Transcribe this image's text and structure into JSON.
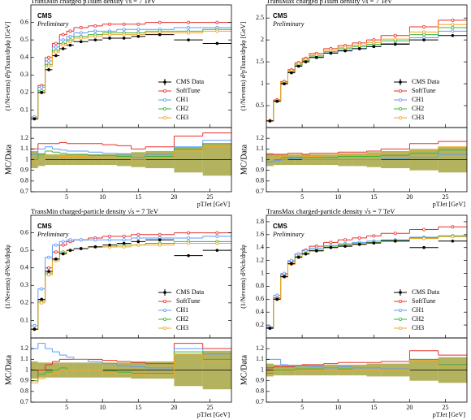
{
  "chart_data": [
    {
      "type": "histogram",
      "title": "TransMin charged pTsum density √s = 7 TeV",
      "ylabel": "(1/Nevents) d²pTsum/dηdφ [GeV]",
      "xlabel": "pTJet [GeV]",
      "annotation": "CMS",
      "annotation2": "Preliminary",
      "legend": "lower right",
      "bins": [
        0,
        1,
        2,
        3,
        4,
        5,
        6,
        8,
        10,
        12,
        14,
        16,
        20,
        24,
        28
      ],
      "xlim": [
        0,
        28
      ],
      "xticks": [
        5,
        10,
        15,
        20,
        25
      ],
      "ylim": [
        0,
        0.7
      ],
      "yticks": [
        0.1,
        0.2,
        0.3,
        0.4,
        0.5,
        0.6
      ],
      "series": [
        {
          "name": "CMS Data",
          "color": "#000000",
          "values": [
            0.05,
            0.2,
            0.33,
            0.41,
            0.45,
            0.47,
            0.49,
            0.5,
            0.51,
            0.51,
            0.52,
            0.53,
            0.5,
            0.48
          ]
        },
        {
          "name": "SoftTune",
          "color": "#e8302a",
          "values": [
            0.06,
            0.24,
            0.4,
            0.48,
            0.53,
            0.55,
            0.57,
            0.58,
            0.59,
            0.59,
            0.59,
            0.6,
            0.6,
            0.6
          ]
        },
        {
          "name": "CH1",
          "color": "#5b9bff",
          "values": [
            0.06,
            0.23,
            0.38,
            0.46,
            0.5,
            0.52,
            0.54,
            0.55,
            0.55,
            0.56,
            0.56,
            0.56,
            0.57,
            0.57
          ]
        },
        {
          "name": "CH2",
          "color": "#3bb33b",
          "values": [
            0.05,
            0.21,
            0.36,
            0.44,
            0.48,
            0.5,
            0.52,
            0.53,
            0.54,
            0.54,
            0.54,
            0.55,
            0.55,
            0.56
          ]
        },
        {
          "name": "CH3",
          "color": "#f5a623",
          "values": [
            0.05,
            0.2,
            0.35,
            0.43,
            0.47,
            0.49,
            0.51,
            0.52,
            0.53,
            0.53,
            0.53,
            0.54,
            0.54,
            0.55
          ]
        }
      ],
      "ratio": {
        "ylabel": "MC/Data",
        "ylim": [
          0.7,
          1.3
        ],
        "yticks": [
          0.7,
          0.8,
          0.9,
          1,
          1.1,
          1.2
        ],
        "band_color": "#9a9a2a",
        "band": [
          0.08,
          0.06,
          0.05,
          0.05,
          0.05,
          0.05,
          0.05,
          0.05,
          0.05,
          0.06,
          0.07,
          0.08,
          0.12,
          0.15
        ],
        "series": [
          {
            "values": [
              1.1,
              1.15,
              1.15,
              1.15,
              1.16,
              1.15,
              1.15,
              1.15,
              1.14,
              1.13,
              1.1,
              1.12,
              1.22,
              1.25
            ]
          },
          {
            "values": [
              1.05,
              1.1,
              1.12,
              1.1,
              1.09,
              1.08,
              1.08,
              1.07,
              1.06,
              1.05,
              1.02,
              1.05,
              1.12,
              1.18
            ]
          },
          {
            "values": [
              1.0,
              1.05,
              1.08,
              1.07,
              1.06,
              1.05,
              1.05,
              1.04,
              1.04,
              1.03,
              1.0,
              1.03,
              1.1,
              1.15
            ]
          },
          {
            "values": [
              0.98,
              1.0,
              1.04,
              1.04,
              1.03,
              1.03,
              1.03,
              1.02,
              1.02,
              1.02,
              0.98,
              1.02,
              1.08,
              1.12
            ]
          }
        ]
      }
    },
    {
      "type": "histogram",
      "title": "TransMax charged pTsum density √s = 7 TeV",
      "ylabel": "(1/Nevents) d²pTsum/dηdφ [GeV]",
      "xlabel": "pTJet [GeV]",
      "annotation": "CMS",
      "annotation2": "Preliminary",
      "legend": "lower right",
      "bins": [
        0,
        1,
        2,
        3,
        4,
        5,
        6,
        8,
        10,
        12,
        14,
        16,
        20,
        24,
        28
      ],
      "xlim": [
        0,
        28
      ],
      "xticks": [
        5,
        10,
        15,
        20,
        25
      ],
      "ylim": [
        0,
        2.8
      ],
      "yticks": [
        0.5,
        1,
        1.5,
        2,
        2.5
      ],
      "series": [
        {
          "name": "CMS Data",
          "color": "#000000",
          "values": [
            0.15,
            0.6,
            1.0,
            1.25,
            1.4,
            1.5,
            1.6,
            1.7,
            1.75,
            1.8,
            1.85,
            1.9,
            2.0,
            2.1
          ]
        },
        {
          "name": "SoftTune",
          "color": "#e8302a",
          "values": [
            0.16,
            0.63,
            1.05,
            1.32,
            1.48,
            1.58,
            1.69,
            1.8,
            1.87,
            1.93,
            2.0,
            2.1,
            2.3,
            2.45
          ]
        },
        {
          "name": "CH1",
          "color": "#5b9bff",
          "values": [
            0.15,
            0.6,
            1.0,
            1.26,
            1.41,
            1.51,
            1.6,
            1.7,
            1.76,
            1.8,
            1.85,
            1.92,
            2.05,
            2.2
          ]
        },
        {
          "name": "CH2",
          "color": "#3bb33b",
          "values": [
            0.15,
            0.6,
            1.02,
            1.28,
            1.43,
            1.53,
            1.63,
            1.73,
            1.8,
            1.85,
            1.9,
            1.98,
            2.12,
            2.28
          ]
        },
        {
          "name": "CH3",
          "color": "#f5a623",
          "values": [
            0.15,
            0.61,
            1.03,
            1.3,
            1.45,
            1.55,
            1.65,
            1.76,
            1.83,
            1.88,
            1.94,
            2.02,
            2.18,
            2.35
          ]
        }
      ],
      "ratio": {
        "ylabel": "MC/Data",
        "ylim": [
          0.7,
          1.3
        ],
        "yticks": [
          0.7,
          0.8,
          0.9,
          1,
          1.1,
          1.2
        ],
        "band_color": "#9a9a2a",
        "band": [
          0.06,
          0.05,
          0.05,
          0.05,
          0.05,
          0.05,
          0.05,
          0.05,
          0.06,
          0.06,
          0.07,
          0.08,
          0.1,
          0.12
        ],
        "series": [
          {
            "values": [
              1.05,
              1.05,
              1.05,
              1.06,
              1.06,
              1.05,
              1.06,
              1.06,
              1.07,
              1.07,
              1.08,
              1.1,
              1.15,
              1.17
            ]
          },
          {
            "values": [
              0.98,
              0.99,
              1.0,
              1.01,
              1.01,
              1.0,
              1.0,
              1.0,
              1.0,
              1.0,
              1.0,
              1.01,
              1.02,
              1.05
            ]
          },
          {
            "values": [
              1.0,
              1.0,
              1.02,
              1.02,
              1.02,
              1.02,
              1.02,
              1.02,
              1.03,
              1.03,
              1.03,
              1.04,
              1.06,
              1.09
            ]
          },
          {
            "values": [
              1.0,
              1.01,
              1.03,
              1.04,
              1.04,
              1.03,
              1.03,
              1.04,
              1.05,
              1.04,
              1.05,
              1.06,
              1.09,
              1.12
            ]
          }
        ]
      }
    },
    {
      "type": "histogram",
      "title": "TransMin charged-particle density √s = 7 TeV",
      "ylabel": "(1/Nevents) d²Nch/dηdφ",
      "xlabel": "pTJet [GeV]",
      "annotation": "CMS",
      "annotation2": "Preliminary",
      "legend": "lower right",
      "bins": [
        0,
        1,
        2,
        3,
        4,
        5,
        6,
        8,
        10,
        12,
        14,
        16,
        20,
        24,
        28
      ],
      "xlim": [
        0,
        28
      ],
      "xticks": [
        5,
        10,
        15,
        20,
        25
      ],
      "ylim": [
        0,
        0.7
      ],
      "yticks": [
        0.1,
        0.2,
        0.3,
        0.4,
        0.5,
        0.6
      ],
      "series": [
        {
          "name": "CMS Data",
          "color": "#000000",
          "values": [
            0.05,
            0.22,
            0.38,
            0.45,
            0.48,
            0.5,
            0.51,
            0.52,
            0.53,
            0.54,
            0.55,
            0.56,
            0.47,
            0.5
          ]
        },
        {
          "name": "SoftTune",
          "color": "#e8302a",
          "values": [
            0.05,
            0.22,
            0.4,
            0.49,
            0.53,
            0.55,
            0.56,
            0.57,
            0.58,
            0.58,
            0.59,
            0.59,
            0.6,
            0.6
          ]
        },
        {
          "name": "CH1",
          "color": "#5b9bff",
          "values": [
            0.07,
            0.28,
            0.46,
            0.53,
            0.55,
            0.56,
            0.56,
            0.56,
            0.56,
            0.56,
            0.57,
            0.57,
            0.57,
            0.58
          ]
        },
        {
          "name": "CH2",
          "color": "#3bb33b",
          "values": [
            0.05,
            0.21,
            0.37,
            0.45,
            0.49,
            0.5,
            0.51,
            0.52,
            0.52,
            0.53,
            0.53,
            0.54,
            0.55,
            0.55
          ]
        },
        {
          "name": "CH3",
          "color": "#f5a623",
          "values": [
            0.05,
            0.2,
            0.36,
            0.44,
            0.48,
            0.5,
            0.51,
            0.52,
            0.52,
            0.52,
            0.53,
            0.53,
            0.54,
            0.54
          ]
        }
      ],
      "ratio": {
        "ylabel": "MC/Data",
        "ylim": [
          0.7,
          1.3
        ],
        "yticks": [
          0.7,
          0.8,
          0.9,
          1,
          1.1,
          1.2
        ],
        "band_color": "#9a9a2a",
        "band": [
          0.08,
          0.07,
          0.07,
          0.07,
          0.07,
          0.07,
          0.07,
          0.07,
          0.07,
          0.07,
          0.08,
          0.08,
          0.15,
          0.18
        ],
        "series": [
          {
            "values": [
              0.9,
              1.0,
              1.05,
              1.08,
              1.1,
              1.1,
              1.1,
              1.1,
              1.09,
              1.08,
              1.07,
              1.06,
              1.25,
              1.2
            ]
          },
          {
            "values": [
              1.2,
              1.25,
              1.2,
              1.17,
              1.14,
              1.12,
              1.1,
              1.08,
              1.06,
              1.04,
              1.03,
              1.02,
              1.2,
              1.15
            ]
          },
          {
            "values": [
              0.9,
              0.96,
              0.98,
              1.0,
              1.02,
              1.0,
              1.0,
              1.0,
              0.99,
              0.98,
              0.97,
              0.97,
              1.17,
              1.1
            ]
          },
          {
            "values": [
              0.88,
              0.92,
              0.95,
              0.98,
              1.0,
              1.0,
              1.0,
              1.0,
              0.98,
              0.97,
              0.96,
              0.95,
              1.15,
              1.08
            ]
          }
        ]
      }
    },
    {
      "type": "histogram",
      "title": "TransMax charged-particle density √s = 7 TeV",
      "ylabel": "(1/Nevents) d²Nch/dηdφ",
      "xlabel": "pTJet [GeV]",
      "annotation": "CMS",
      "annotation2": "Preliminary",
      "legend": "lower right",
      "bins": [
        0,
        1,
        2,
        3,
        4,
        5,
        6,
        8,
        10,
        12,
        14,
        16,
        20,
        24,
        28
      ],
      "xlim": [
        0,
        28
      ],
      "xticks": [
        5,
        10,
        15,
        20,
        25
      ],
      "ylim": [
        0,
        1.9
      ],
      "yticks": [
        0.2,
        0.4,
        0.6,
        0.8,
        1,
        1.2,
        1.4,
        1.6,
        1.8
      ],
      "series": [
        {
          "name": "CMS Data",
          "color": "#000000",
          "values": [
            0.15,
            0.6,
            0.95,
            1.15,
            1.25,
            1.3,
            1.35,
            1.4,
            1.42,
            1.45,
            1.47,
            1.5,
            1.4,
            1.5
          ]
        },
        {
          "name": "SoftTune",
          "color": "#e8302a",
          "values": [
            0.16,
            0.62,
            0.98,
            1.18,
            1.3,
            1.36,
            1.42,
            1.48,
            1.52,
            1.55,
            1.58,
            1.62,
            1.68,
            1.72
          ]
        },
        {
          "name": "CH1",
          "color": "#5b9bff",
          "values": [
            0.17,
            0.66,
            1.0,
            1.2,
            1.3,
            1.35,
            1.39,
            1.43,
            1.46,
            1.48,
            1.5,
            1.52,
            1.56,
            1.58
          ]
        },
        {
          "name": "CH2",
          "color": "#3bb33b",
          "values": [
            0.15,
            0.6,
            0.95,
            1.15,
            1.26,
            1.31,
            1.36,
            1.41,
            1.44,
            1.46,
            1.48,
            1.51,
            1.55,
            1.58
          ]
        },
        {
          "name": "CH3",
          "color": "#f5a623",
          "values": [
            0.15,
            0.6,
            0.94,
            1.14,
            1.25,
            1.3,
            1.35,
            1.4,
            1.43,
            1.45,
            1.47,
            1.5,
            1.54,
            1.57
          ]
        }
      ],
      "ratio": {
        "ylabel": "MC/Data",
        "ylim": [
          0.7,
          1.3
        ],
        "yticks": [
          0.7,
          0.8,
          0.9,
          1,
          1.1,
          1.2
        ],
        "band_color": "#9a9a2a",
        "band": [
          0.06,
          0.05,
          0.05,
          0.05,
          0.05,
          0.05,
          0.05,
          0.05,
          0.05,
          0.05,
          0.06,
          0.06,
          0.1,
          0.12
        ],
        "series": [
          {
            "values": [
              1.02,
              1.03,
              1.03,
              1.03,
              1.04,
              1.05,
              1.05,
              1.06,
              1.07,
              1.07,
              1.07,
              1.08,
              1.18,
              1.14
            ]
          },
          {
            "values": [
              1.1,
              1.1,
              1.05,
              1.04,
              1.04,
              1.04,
              1.03,
              1.02,
              1.03,
              1.02,
              1.02,
              1.01,
              1.1,
              1.05
            ]
          },
          {
            "values": [
              0.97,
              1.0,
              1.0,
              1.0,
              1.01,
              1.01,
              1.01,
              1.0,
              1.01,
              1.0,
              1.0,
              1.0,
              1.1,
              1.05
            ]
          },
          {
            "values": [
              0.96,
              0.99,
              0.99,
              0.99,
              1.0,
              1.0,
              1.0,
              1.0,
              1.0,
              1.0,
              1.0,
              1.0,
              1.09,
              1.04
            ]
          }
        ]
      }
    }
  ]
}
